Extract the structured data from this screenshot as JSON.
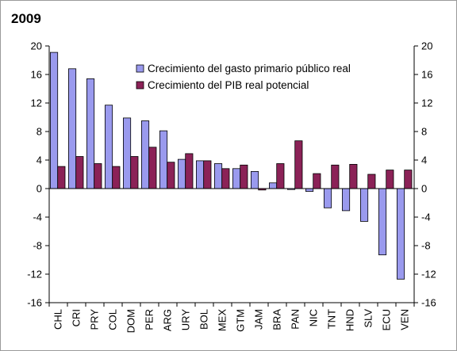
{
  "chart_data": {
    "type": "bar",
    "title": "2009",
    "xlabel": "",
    "ylabel": "",
    "ylim": [
      -16,
      20
    ],
    "yticks": [
      20,
      16,
      12,
      8,
      4,
      0,
      -4,
      -8,
      -12,
      -16
    ],
    "grid": false,
    "legend": "top-right",
    "categories": [
      "CHL",
      "CRI",
      "PRY",
      "COL",
      "DOM",
      "PER",
      "ARG",
      "URY",
      "BOL",
      "MEX",
      "GTM",
      "JAM",
      "BRA",
      "PAN",
      "NIC",
      "TNT",
      "HND",
      "SLV",
      "ECU",
      "VEN"
    ],
    "series": [
      {
        "name": "Crecimiento del gasto primario público real",
        "color": "#9a9aee",
        "values": [
          19.1,
          16.8,
          15.4,
          11.7,
          9.9,
          9.5,
          8.1,
          4.1,
          3.9,
          3.5,
          2.8,
          2.4,
          0.8,
          0.0,
          -0.4,
          -2.7,
          -3.1,
          -4.6,
          -9.3,
          -12.7
        ]
      },
      {
        "name": "Crecimiento del PIB real potencial",
        "color": "#8b2257",
        "values": [
          3.1,
          4.5,
          3.5,
          3.1,
          4.5,
          5.8,
          3.7,
          4.9,
          3.9,
          2.8,
          3.3,
          -0.2,
          3.5,
          6.7,
          2.1,
          3.3,
          3.4,
          2.0,
          2.6,
          2.6
        ]
      }
    ]
  }
}
